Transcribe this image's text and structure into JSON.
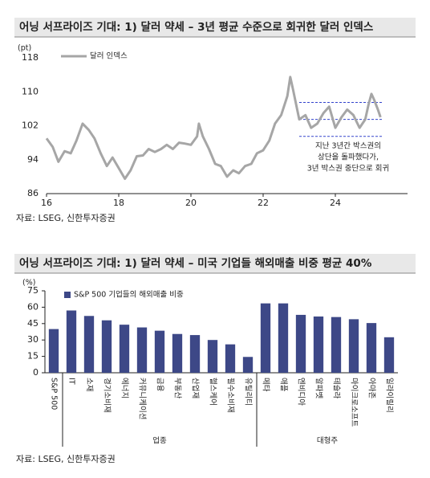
{
  "chart_data": [
    {
      "type": "line",
      "title": "어닝 서프라이즈 기대: 1) 달러 약세 – 3년 평균 수준으로 회귀한 달러 인덱스",
      "y_unit": "(pt)",
      "source": "자료: LSEG, 신한투자증권",
      "annotation": [
        "지난 3년간 박스권의",
        "상단을 돌파했다가,",
        "3년 박스권 중단으로 회귀"
      ],
      "xlim": [
        16,
        26
      ],
      "xticks": [
        16,
        18,
        20,
        22,
        24
      ],
      "ylim": [
        86,
        118
      ],
      "yticks": [
        86,
        94,
        102,
        110,
        118
      ],
      "reference_lines": {
        "values": [
          107.5,
          103.5,
          99.5
        ],
        "x_range": [
          23,
          25.3
        ],
        "color": "#3344cc"
      },
      "x": [
        16.0,
        16.17,
        16.33,
        16.5,
        16.67,
        16.83,
        17.0,
        17.17,
        17.33,
        17.5,
        17.67,
        17.83,
        18.0,
        18.17,
        18.33,
        18.5,
        18.67,
        18.83,
        19.0,
        19.17,
        19.33,
        19.5,
        19.67,
        19.83,
        20.0,
        20.17,
        20.22,
        20.33,
        20.5,
        20.67,
        20.83,
        21.0,
        21.17,
        21.33,
        21.5,
        21.67,
        21.83,
        22.0,
        22.17,
        22.33,
        22.5,
        22.67,
        22.75,
        22.83,
        23.0,
        23.17,
        23.33,
        23.5,
        23.67,
        23.83,
        24.0,
        24.17,
        24.33,
        24.5,
        24.67,
        24.83,
        24.92,
        25.0,
        25.08,
        25.17,
        25.25
      ],
      "series": [
        {
          "name": "달러 인덱스",
          "color": "#a6a6a6",
          "values": [
            99,
            97,
            93.5,
            96,
            95.5,
            98.5,
            102.5,
            101,
            99,
            95.5,
            92.5,
            94.5,
            92,
            89.5,
            91.5,
            94.8,
            95,
            96.5,
            95.8,
            96.5,
            97.5,
            96.5,
            98,
            97.8,
            97.5,
            99.5,
            102.5,
            99.5,
            96.5,
            93,
            92.5,
            90,
            91.5,
            90.8,
            92.5,
            93,
            95.5,
            96.2,
            98.5,
            102.5,
            104.5,
            109,
            113.5,
            110.5,
            103.5,
            104.5,
            101.5,
            102.5,
            105,
            106.5,
            101.5,
            104,
            105.8,
            104.5,
            101.5,
            103.5,
            107,
            109.5,
            108,
            106,
            104
          ]
        }
      ]
    },
    {
      "type": "bar",
      "title": "어닝 서프라이즈 기대: 1) 달러 약세 – 미국 기업들 해외매출 비중 평균 40%",
      "y_unit": "(%)",
      "source": "자료: LSEG, 신한투자증권",
      "ylim": [
        0,
        75
      ],
      "yticks": [
        0,
        15,
        30,
        45,
        60,
        75
      ],
      "categories": [
        "S&P 500",
        "IT",
        "소재",
        "경기소비재",
        "에너지",
        "커뮤니케이션",
        "금융",
        "부동산",
        "산업재",
        "헬스케어",
        "필수소비재",
        "유틸리티",
        "메타",
        "애플",
        "엔비디아",
        "알파벳",
        "테슬라",
        "마이크로소프트",
        "아마존",
        "일라이릴리"
      ],
      "groups": [
        {
          "label": "업종",
          "range": [
            1,
            11
          ]
        },
        {
          "label": "대형주",
          "range": [
            12,
            19
          ]
        }
      ],
      "series": [
        {
          "name": "S&P 500 기업들의 해외매출 비중",
          "color": "#3d4887",
          "values": [
            40,
            57,
            52,
            48,
            44,
            41.5,
            38.5,
            35.5,
            34.5,
            30,
            26,
            14.5,
            63.5,
            63.5,
            53,
            51.5,
            51,
            49,
            45.5,
            32.5
          ]
        }
      ]
    }
  ]
}
